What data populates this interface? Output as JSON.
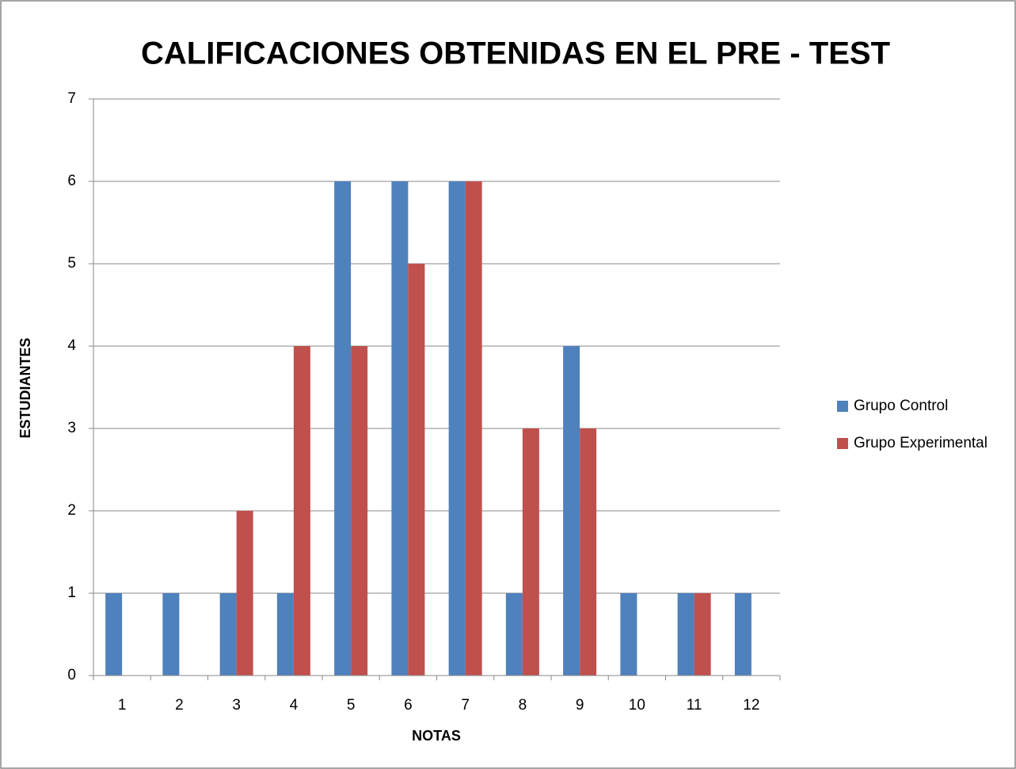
{
  "chart_data": {
    "type": "bar",
    "title": "CALIFICACIONES OBTENIDAS EN EL PRE - TEST",
    "x_label": "NOTAS",
    "y_label": "ESTUDIANTES",
    "categories": [
      "1",
      "2",
      "3",
      "4",
      "5",
      "6",
      "7",
      "8",
      "9",
      "10",
      "11",
      "12"
    ],
    "series": [
      {
        "name": "Grupo Control",
        "color": "#4f81bd",
        "values": [
          1,
          1,
          1,
          1,
          6,
          6,
          6,
          1,
          4,
          1,
          1,
          1
        ]
      },
      {
        "name": "Grupo Experimental",
        "color": "#c0504d",
        "values": [
          0,
          0,
          2,
          4,
          4,
          5,
          6,
          3,
          3,
          0,
          1,
          0
        ]
      }
    ],
    "ylim": [
      0,
      7
    ],
    "yticks": [
      0,
      1,
      2,
      3,
      4,
      5,
      6,
      7
    ],
    "grid": true,
    "legend": "right"
  }
}
